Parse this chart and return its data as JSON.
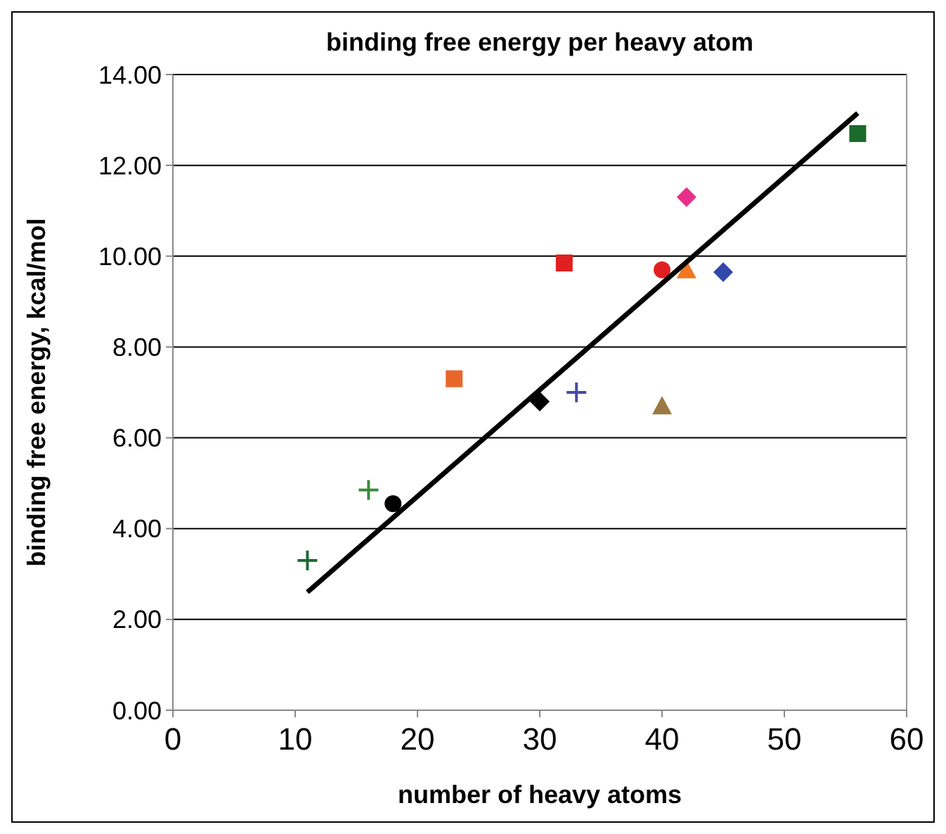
{
  "chart_data": {
    "type": "scatter",
    "title": "binding free energy per heavy atom",
    "xlabel": "number of heavy atoms",
    "ylabel": "binding free energy, kcal/mol",
    "xlim": [
      0,
      60
    ],
    "xticks": [
      0,
      10,
      20,
      30,
      40,
      50,
      60
    ],
    "ylim": [
      0,
      14
    ],
    "yticks": [
      {
        "value": 0,
        "label": "0.00"
      },
      {
        "value": 2,
        "label": "2.00"
      },
      {
        "value": 4,
        "label": "4.00"
      },
      {
        "value": 6,
        "label": "6.00"
      },
      {
        "value": 8,
        "label": "8.00"
      },
      {
        "value": 10,
        "label": "10.00"
      },
      {
        "value": 12,
        "label": "12.00"
      },
      {
        "value": 14,
        "label": "14.00"
      }
    ],
    "grid": "y",
    "series": [
      {
        "x": [
          11
        ],
        "values": [
          3.3
        ],
        "color": "#1e6b30",
        "marker": "cross"
      },
      {
        "x": [
          16
        ],
        "values": [
          4.85
        ],
        "color": "#3a8a3a",
        "marker": "cross"
      },
      {
        "x": [
          18
        ],
        "values": [
          4.55
        ],
        "color": "#000000",
        "marker": "circle"
      },
      {
        "x": [
          23
        ],
        "values": [
          7.3
        ],
        "color": "#e8662a",
        "marker": "square"
      },
      {
        "x": [
          30
        ],
        "values": [
          6.8
        ],
        "color": "#000000",
        "marker": "diamond"
      },
      {
        "x": [
          33
        ],
        "values": [
          7.0
        ],
        "color": "#4a4aa8",
        "marker": "cross"
      },
      {
        "x": [
          40
        ],
        "values": [
          6.7
        ],
        "color": "#9a7a40",
        "marker": "triangle"
      },
      {
        "x": [
          32
        ],
        "values": [
          9.85
        ],
        "color": "#e02020",
        "marker": "square"
      },
      {
        "x": [
          40
        ],
        "values": [
          9.7
        ],
        "color": "#e02020",
        "marker": "circle"
      },
      {
        "x": [
          42
        ],
        "values": [
          9.7
        ],
        "color": "#f07820",
        "marker": "triangle"
      },
      {
        "x": [
          45
        ],
        "values": [
          9.65
        ],
        "color": "#3048a8",
        "marker": "diamond"
      },
      {
        "x": [
          42
        ],
        "values": [
          11.3
        ],
        "color": "#e8308a",
        "marker": "diamond"
      },
      {
        "x": [
          56
        ],
        "values": [
          12.7
        ],
        "color": "#1a6b2a",
        "marker": "square"
      },
      {
        "type": "line",
        "x": [
          11,
          56
        ],
        "values": [
          2.6,
          13.15
        ],
        "color": "#000000",
        "marker": "none",
        "line_style": "solid"
      }
    ]
  }
}
